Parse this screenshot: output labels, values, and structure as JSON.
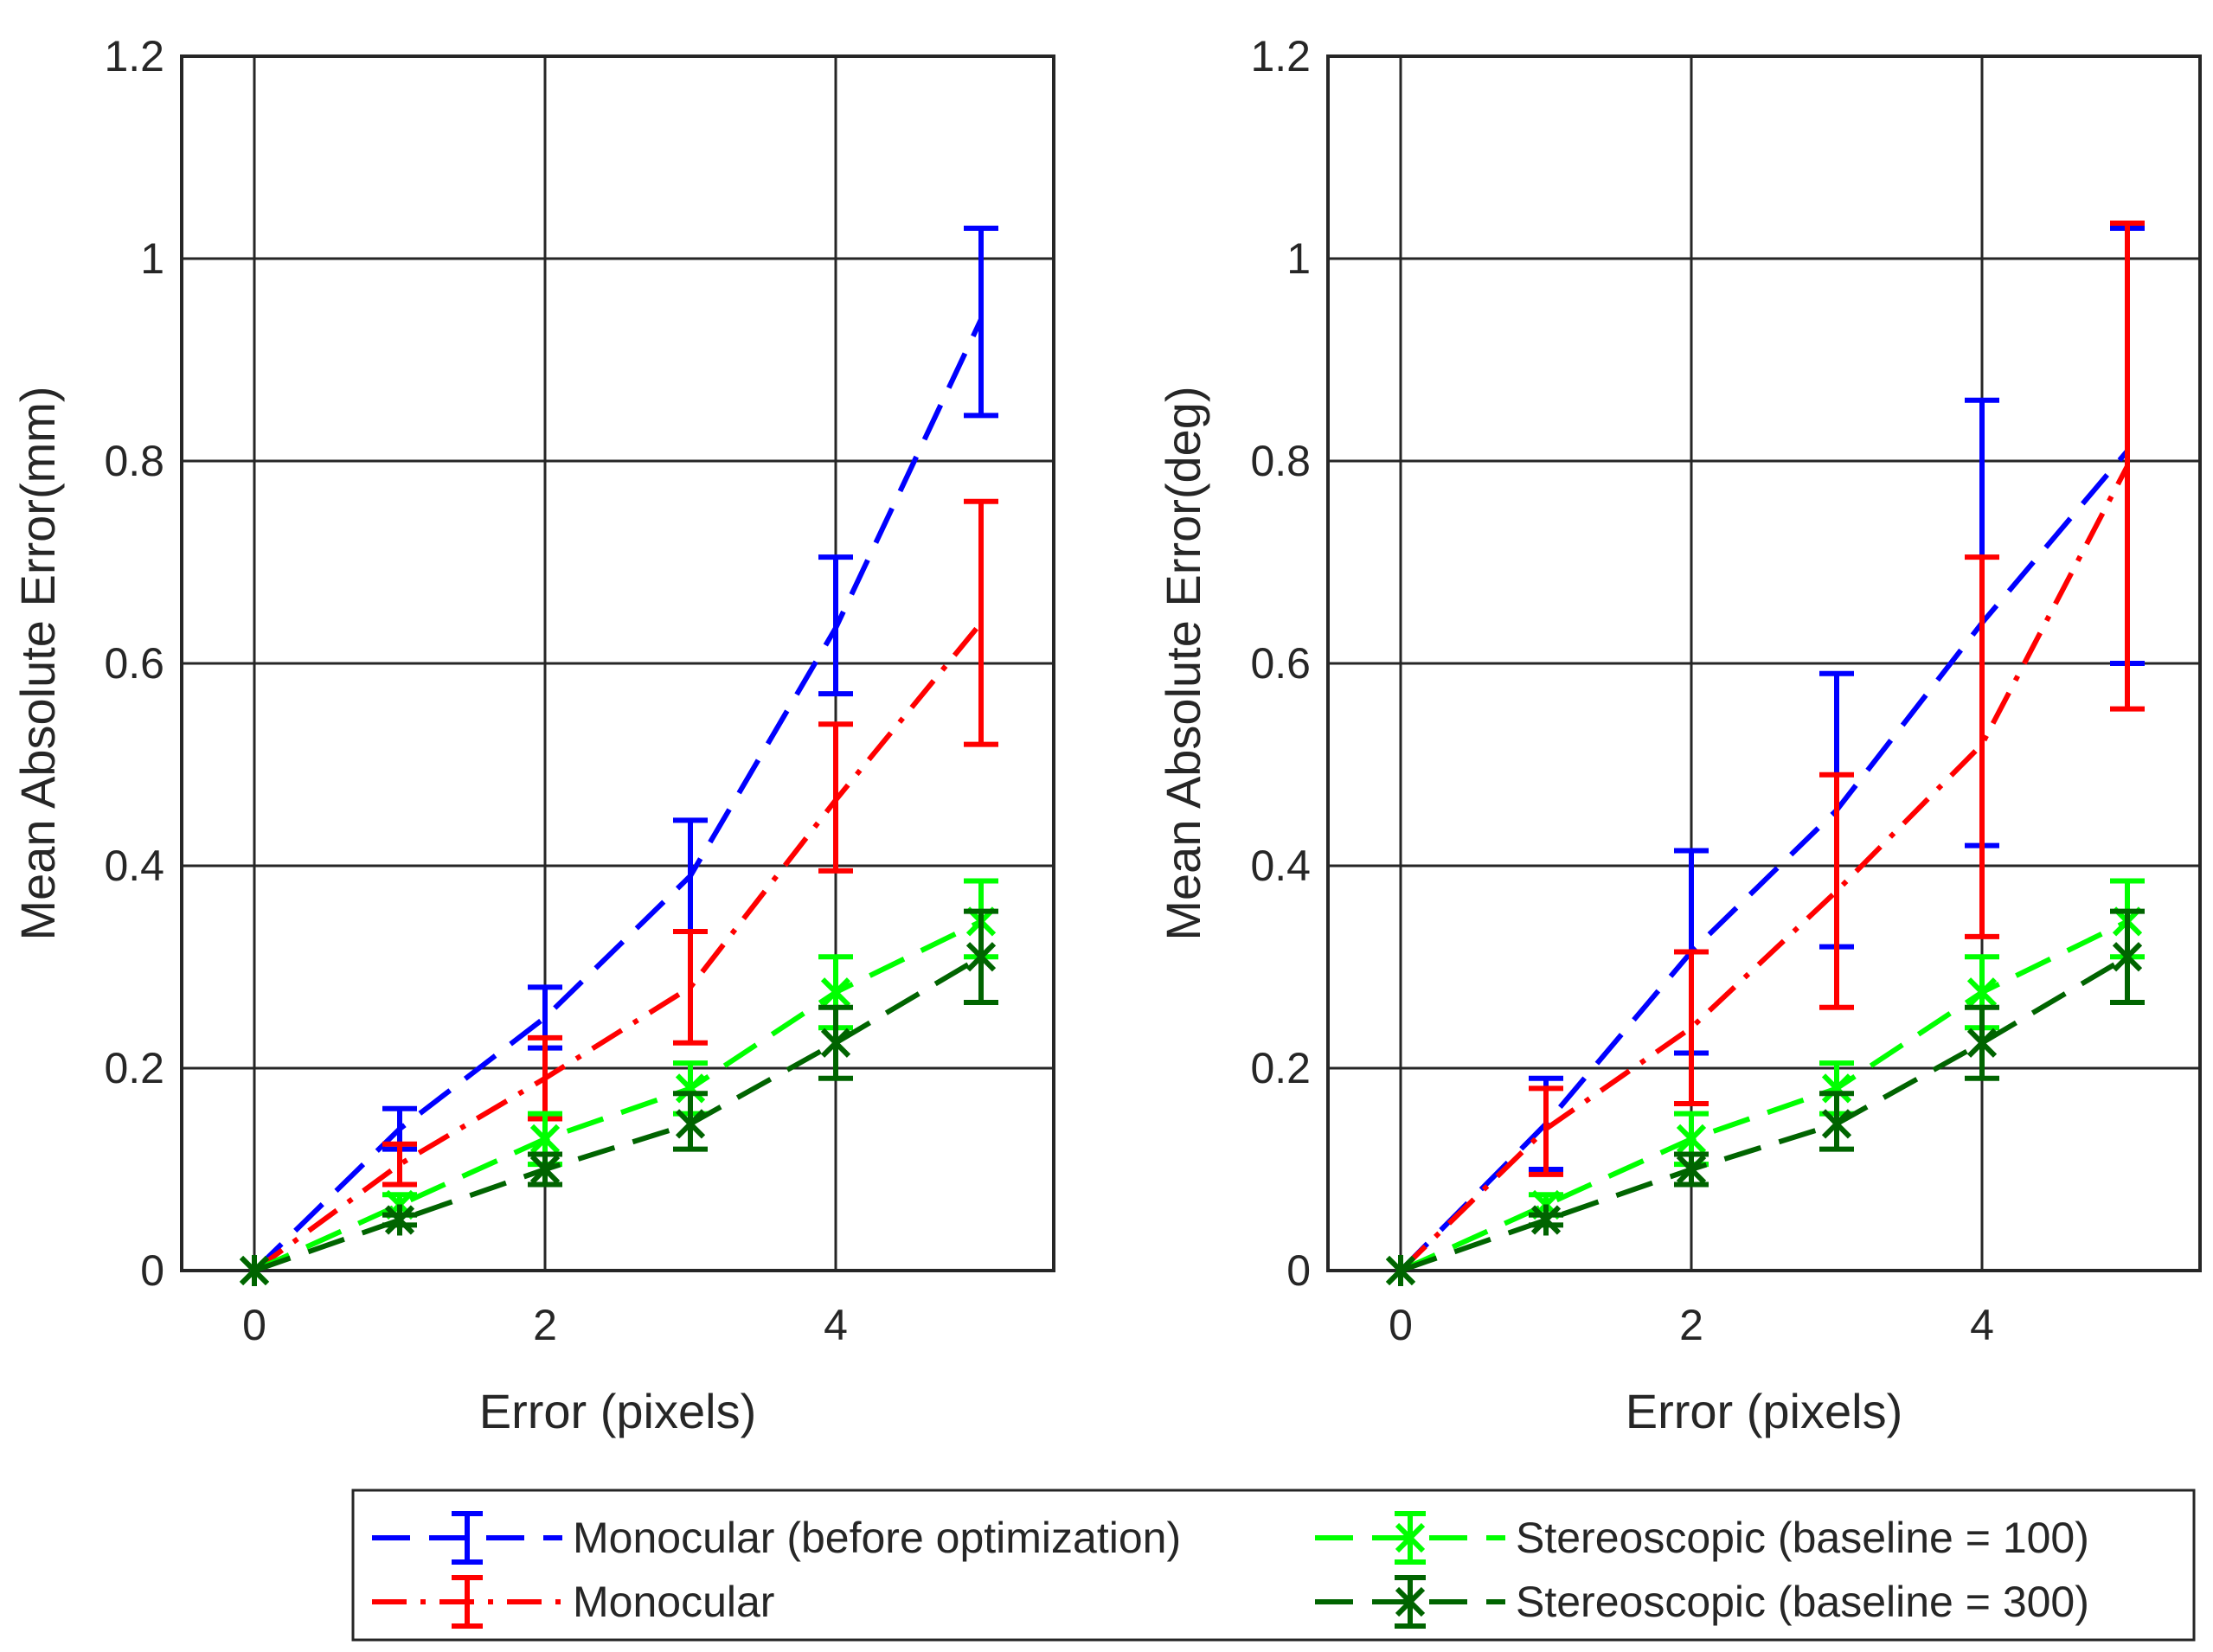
{
  "chart_data": [
    {
      "type": "line",
      "title": "",
      "xlabel": "Error (pixels)",
      "ylabel": "Mean Absolute Error(mm)",
      "xlim": [
        -0.5,
        5.5
      ],
      "ylim": [
        0,
        1.2
      ],
      "xticks": [
        0,
        2,
        4
      ],
      "xtick_labels": [
        "0",
        "2",
        "4"
      ],
      "yticks": [
        0,
        0.2,
        0.4,
        0.6,
        0.8,
        1,
        1.2
      ],
      "ytick_labels": [
        "0",
        "0.2",
        "0.4",
        "0.6",
        "0.8",
        "1",
        "1.2"
      ],
      "grid": true,
      "x": [
        0,
        1,
        2,
        3,
        4,
        5
      ],
      "series": [
        {
          "name": "Monocular (before optimization)",
          "color": "#0000ff",
          "linestyle": "dashed",
          "marker": "none",
          "values": [
            0,
            0.14,
            0.25,
            0.39,
            0.635,
            0.94
          ],
          "err_low": [
            0,
            0.12,
            0.22,
            0.335,
            0.57,
            0.845
          ],
          "err_high": [
            0,
            0.16,
            0.28,
            0.445,
            0.705,
            1.03
          ]
        },
        {
          "name": "Monocular",
          "color": "#ff0000",
          "linestyle": "dashdot",
          "marker": "none",
          "values": [
            0,
            0.105,
            0.19,
            0.28,
            0.465,
            0.64
          ],
          "err_low": [
            0,
            0.085,
            0.15,
            0.225,
            0.395,
            0.52
          ],
          "err_high": [
            0,
            0.125,
            0.23,
            0.335,
            0.54,
            0.76
          ]
        },
        {
          "name": "Stereoscopic (baseline = 100)",
          "color": "#00ff00",
          "linestyle": "dashed",
          "marker": "x",
          "values": [
            0,
            0.065,
            0.13,
            0.18,
            0.275,
            0.345
          ],
          "err_low": [
            0,
            0.055,
            0.105,
            0.155,
            0.24,
            0.31
          ],
          "err_high": [
            0,
            0.075,
            0.155,
            0.205,
            0.31,
            0.385
          ]
        },
        {
          "name": "Stereoscopic (baseline = 300)",
          "color": "#006400",
          "linestyle": "dashed",
          "marker": "asterisk",
          "values": [
            0,
            0.05,
            0.1,
            0.145,
            0.225,
            0.31
          ],
          "err_low": [
            0,
            0.045,
            0.085,
            0.12,
            0.19,
            0.265
          ],
          "err_high": [
            0,
            0.055,
            0.115,
            0.175,
            0.26,
            0.355
          ]
        }
      ]
    },
    {
      "type": "line",
      "title": "",
      "xlabel": "Error (pixels)",
      "ylabel": "Mean Absolute Error(deg)",
      "xlim": [
        -0.5,
        5.5
      ],
      "ylim": [
        0,
        1.2
      ],
      "xticks": [
        0,
        2,
        4
      ],
      "xtick_labels": [
        "0",
        "2",
        "4"
      ],
      "yticks": [
        0,
        0.2,
        0.4,
        0.6,
        0.8,
        1,
        1.2
      ],
      "ytick_labels": [
        "0",
        "0.2",
        "0.4",
        "0.6",
        "0.8",
        "1",
        "1.2"
      ],
      "grid": true,
      "x": [
        0,
        1,
        2,
        3,
        4,
        5
      ],
      "series": [
        {
          "name": "Monocular (before optimization)",
          "color": "#0000ff",
          "linestyle": "dashed",
          "marker": "none",
          "values": [
            0,
            0.145,
            0.315,
            0.455,
            0.64,
            0.81
          ],
          "err_low": [
            0,
            0.1,
            0.215,
            0.32,
            0.42,
            0.6
          ],
          "err_high": [
            0,
            0.19,
            0.415,
            0.59,
            0.86,
            1.03
          ]
        },
        {
          "name": "Monocular",
          "color": "#ff0000",
          "linestyle": "dashdot",
          "marker": "none",
          "values": [
            0,
            0.14,
            0.24,
            0.375,
            0.52,
            0.795
          ],
          "err_low": [
            0,
            0.095,
            0.165,
            0.26,
            0.33,
            0.555
          ],
          "err_high": [
            0,
            0.18,
            0.315,
            0.49,
            0.705,
            1.035
          ]
        },
        {
          "name": "Stereoscopic (baseline = 100)",
          "color": "#00ff00",
          "linestyle": "dashed",
          "marker": "x",
          "values": [
            0,
            0.065,
            0.13,
            0.18,
            0.275,
            0.345
          ],
          "err_low": [
            0,
            0.055,
            0.105,
            0.155,
            0.24,
            0.31
          ],
          "err_high": [
            0,
            0.075,
            0.155,
            0.205,
            0.31,
            0.385
          ]
        },
        {
          "name": "Stereoscopic (baseline = 300)",
          "color": "#006400",
          "linestyle": "dashed",
          "marker": "asterisk",
          "values": [
            0,
            0.05,
            0.1,
            0.145,
            0.225,
            0.31
          ],
          "err_low": [
            0,
            0.045,
            0.085,
            0.12,
            0.19,
            0.265
          ],
          "err_high": [
            0,
            0.055,
            0.115,
            0.175,
            0.26,
            0.355
          ]
        }
      ]
    }
  ],
  "legend": {
    "placement": "bottom",
    "entries": [
      "Monocular (before optimization)",
      "Monocular",
      "Stereoscopic (baseline = 100)",
      "Stereoscopic (baseline = 300)"
    ]
  }
}
